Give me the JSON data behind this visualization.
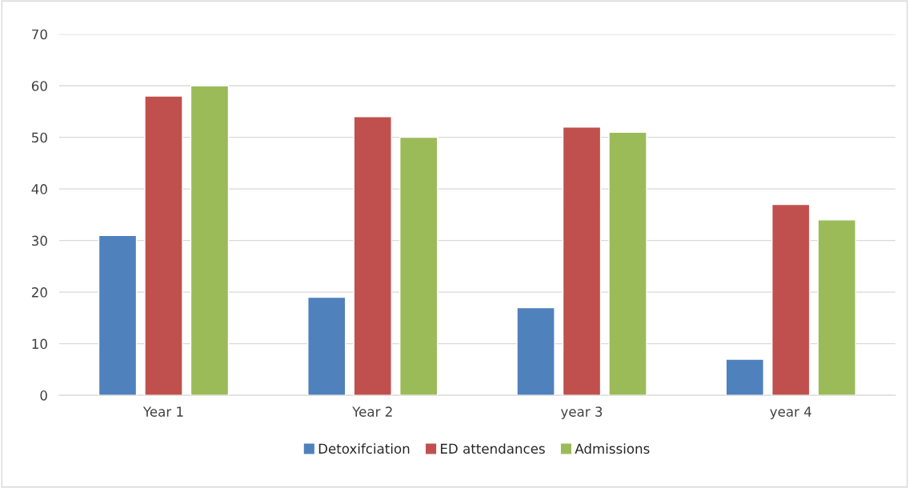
{
  "chart_data": {
    "type": "bar",
    "categories": [
      "Year 1",
      "Year 2",
      "year 3",
      "year 4"
    ],
    "series": [
      {
        "name": "Detoxifciation",
        "color": "#4f81bd",
        "values": [
          31,
          19,
          17,
          7
        ]
      },
      {
        "name": "ED attendances",
        "color": "#c0504d",
        "values": [
          58,
          54,
          52,
          37
        ]
      },
      {
        "name": "Admissions",
        "color": "#9bbb59",
        "values": [
          60,
          50,
          51,
          34
        ]
      }
    ],
    "ylim": [
      0,
      70
    ],
    "yticks": [
      0,
      10,
      20,
      30,
      40,
      50,
      60,
      70
    ],
    "grid": "y",
    "legend": "bottom"
  }
}
